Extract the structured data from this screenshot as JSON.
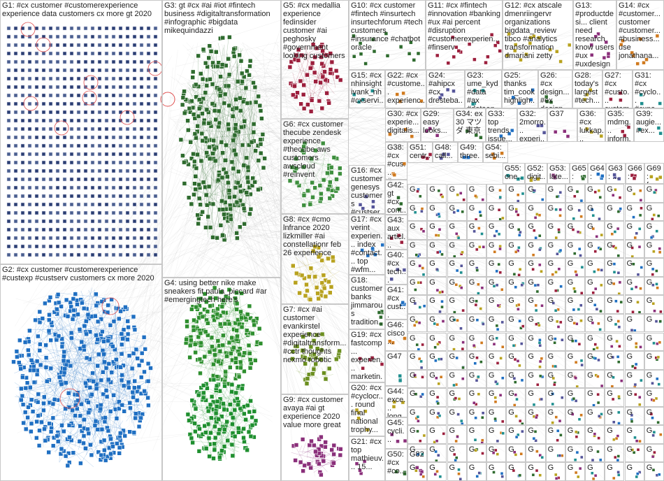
{
  "groups": [
    {
      "id": "G1",
      "label": "G1: #cx customer #customerexperience experience data customers cx more gt 2020"
    },
    {
      "id": "G2",
      "label": "G2: #cx customer #customerexperience #custexp #custserv customers cx more 2020"
    },
    {
      "id": "G3",
      "label": "G3: gt #cx #ai #iot #fintech business #digitaltransformation #infographic #bigdata mikequindazzi"
    },
    {
      "id": "G4",
      "label": "G4: using better nike make sneakers fit paula_piccard #ar #emergingtech here's"
    },
    {
      "id": "G5",
      "label": "G5: #cx medallia experience fedinsider customer #ai peghosky #government looking customers"
    },
    {
      "id": "G6",
      "label": "G6: #cx customer thecube zendesk experience #thecube aws customers awscloud #reinvent"
    },
    {
      "id": "G7",
      "label": "G7: #cx #ai customer evankirstel experience #digitaltransform... #cctr thoughts nexmo robotic"
    },
    {
      "id": "G8",
      "label": "G8: #cx #cmo lnfrance 2020 lizkmiller #ai constellationr feb 26 experience"
    },
    {
      "id": "G9",
      "label": "G9: #cx customer avaya #ai gt experience 2020 value more great"
    },
    {
      "id": "G10",
      "label": "G10: #cx customer #fintech #insurtech insurtechforum #tech customers #insurance #chatbot oracle"
    },
    {
      "id": "G11",
      "label": "G11: #cx #fintech #innovation #banking #ux #ai percent #disruption #customerexperien... #finserv"
    },
    {
      "id": "G12",
      "label": "G12: #cx atscale dmenriingervr organizations bigdata_review tibco #analytics transformation dmariani zetty"
    },
    {
      "id": "G13",
      "label": "G13: #productdesi... client need research know users #ux #uxdesign #research"
    },
    {
      "id": "G14",
      "label": "G14: #cx #customer... customer #customer... #business... use jonathana..."
    },
    {
      "id": "G15",
      "label": "G15: #cx nhinsight ivank_nh #cxservi... concentrix profile customer service..."
    },
    {
      "id": "G16",
      "label": "G16: #cx customer genesys customers #custserv #ai cx more..."
    },
    {
      "id": "G17",
      "label": "G17: #cx verint experien... index #contact... top #wfm..."
    },
    {
      "id": "G18",
      "label": "G18: customer banks jimmarous tradition..."
    },
    {
      "id": "G19",
      "label": "G19: #cx fastcomp... experien... marketin... flywheel..."
    },
    {
      "id": "G20",
      "label": "G20: #cx #cyclocr... round final national trophy..."
    },
    {
      "id": "G21",
      "label": "G21: #cx top mathieuv... 15..."
    },
    {
      "id": "G22",
      "label": "G22: #cx #custome... experienc..."
    },
    {
      "id": "G23",
      "label": "G23: ume_kyd #data #ax #dataan..."
    },
    {
      "id": "G24",
      "label": "G24: #ahipcx #cx dresteba..."
    },
    {
      "id": "G25",
      "label": "G25: thanks tim_cook highligh..."
    },
    {
      "id": "G26",
      "label": "G26: #cx design... #ex design..."
    },
    {
      "id": "G27",
      "label": "G27: #cx #custo... custom..."
    },
    {
      "id": "G28",
      "label": "G28: today's largest #tech..."
    },
    {
      "id": "G29",
      "label": "G29: easy looks..."
    },
    {
      "id": "G30",
      "label": "G30: #cx experie... digitalis..."
    },
    {
      "id": "G31",
      "label": "G31: #cx #cyclo... #cxna..."
    },
    {
      "id": "G32",
      "label": "G32: 2morro... experi..."
    },
    {
      "id": "G33",
      "label": "G33: top trends issue..."
    },
    {
      "id": "G34",
      "label": "G34: ex 30 マツダ 東京"
    },
    {
      "id": "G35",
      "label": "G35: mdmg... inform..."
    },
    {
      "id": "G36",
      "label": "G36: #cx lukkap..."
    },
    {
      "id": "G37",
      "label": "G37"
    },
    {
      "id": "G38",
      "label": "G38: #cx #cus... #ex..."
    },
    {
      "id": "G39",
      "label": "G39: augie... #ex..."
    },
    {
      "id": "G40",
      "label": "G40: #cx tech..."
    },
    {
      "id": "G41",
      "label": "G41: #cx cust..."
    },
    {
      "id": "G42",
      "label": "G42: gt #cx cont..."
    },
    {
      "id": "G43",
      "label": "G43: aux articl..."
    },
    {
      "id": "G44",
      "label": "G44: exce... long..."
    },
    {
      "id": "G45",
      "label": "G45: cycli..."
    },
    {
      "id": "G46",
      "label": "G46: cisco..."
    },
    {
      "id": "G47",
      "label": "G47"
    },
    {
      "id": "G48",
      "label": "G48: call..."
    },
    {
      "id": "G49",
      "label": "G49: three..."
    },
    {
      "id": "G50",
      "label": "G50: #cx #co..."
    },
    {
      "id": "G51",
      "label": "G51: centr..."
    },
    {
      "id": "G52",
      "label": "G52: digit..."
    },
    {
      "id": "G53",
      "label": "G53: late..."
    },
    {
      "id": "G54",
      "label": "G54: sebi..."
    },
    {
      "id": "G55",
      "label": "G55: one..."
    },
    {
      "id": "G63",
      "label": "G63: ..."
    },
    {
      "id": "G64",
      "label": "G64: sno..."
    },
    {
      "id": "G65",
      "label": "G65: cus..."
    },
    {
      "id": "G66",
      "label": "G66: ver..."
    },
    {
      "id": "G69",
      "label": "G69: fac..."
    },
    {
      "id": "G82",
      "label": "G82"
    }
  ],
  "small_group_label": "G",
  "colors": {
    "G1": "#1f3d7a",
    "G2": "#1f6fc2",
    "G3": "#2e6b2e",
    "G4": "#2f8f2f",
    "G5": "#9c1f3d",
    "G6": "#3f7f3f",
    "G7": "#6b8f1f",
    "G8": "#b8a21f",
    "G9": "#8a2f7a",
    "edge": "#8a8a8a",
    "accent_red": "#d42020",
    "border": "#c8c8c8"
  }
}
